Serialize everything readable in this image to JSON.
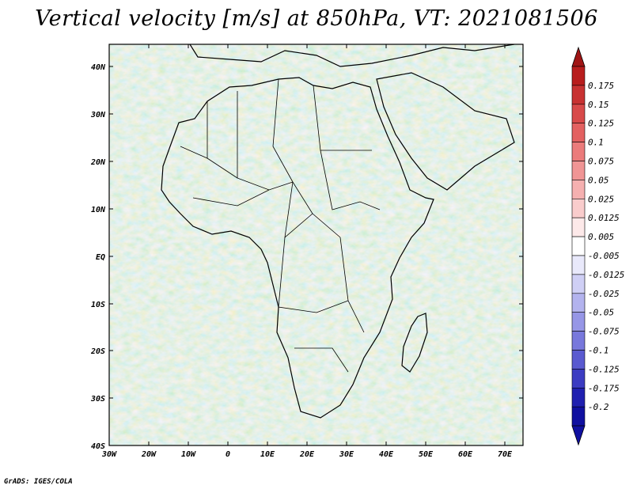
{
  "title": "Vertical velocity [m/s] at 850hPa, VT: 2021081506",
  "footer": "GrADS: IGES/COLA",
  "map": {
    "lat_labels": [
      "40N",
      "30N",
      "20N",
      "10N",
      "EQ",
      "10S",
      "20S",
      "30S",
      "40S"
    ],
    "lon_labels": [
      "30W",
      "20W",
      "10W",
      "0",
      "10E",
      "20E",
      "30E",
      "40E",
      "50E",
      "60E",
      "70E"
    ],
    "lat_range": [
      -40,
      45
    ],
    "lon_range": [
      -30,
      75
    ]
  },
  "colorbar": {
    "levels": [
      "0.175",
      "0.15",
      "0.125",
      "0.1",
      "0.075",
      "0.05",
      "0.025",
      "0.0125",
      "0.005",
      "-0.005",
      "-0.0125",
      "-0.025",
      "-0.05",
      "-0.075",
      "-0.1",
      "-0.125",
      "-0.175",
      "-0.2"
    ],
    "colors": [
      "#b81d1d",
      "#c83232",
      "#d84a4a",
      "#e36161",
      "#eb7b7b",
      "#f09595",
      "#f5b0b0",
      "#f9cccc",
      "#fde9e9",
      "#ffffff",
      "#e9e9fb",
      "#cfcff5",
      "#b3b3ee",
      "#9696e6",
      "#7878dc",
      "#5a5ad0",
      "#3c3cc2",
      "#2020b0",
      "#1010a0"
    ],
    "top_color": "#a01515",
    "bottom_color": "#1010a0"
  }
}
